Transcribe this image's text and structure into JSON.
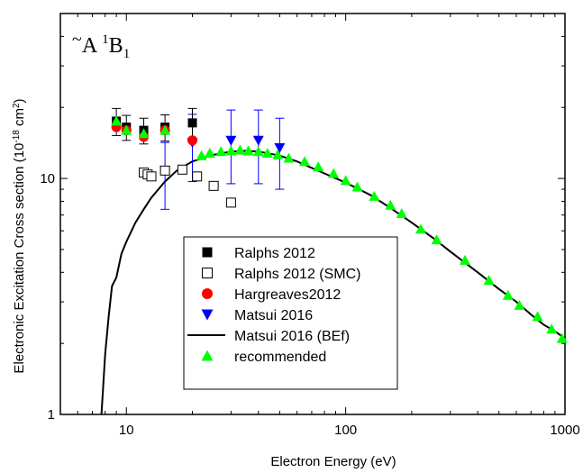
{
  "chart_data": {
    "type": "scatter",
    "xlabel": "Electron Energy (eV)",
    "ylabel": "Electronic Excitation Cross section (10",
    "ylabel_sup": "-18",
    "ylabel_unit": " cm",
    "ylabel_unit_sup": "2",
    "ylabel_end": ")",
    "annotation": {
      "tilde": "~",
      "letter": "A",
      "sup": "1",
      "main": "B",
      "sub": "1"
    },
    "xscale": "log",
    "yscale": "log",
    "xlim": [
      5,
      1000
    ],
    "ylim": [
      1,
      50
    ],
    "x_ticks": [
      {
        "value": 10,
        "label": "10"
      },
      {
        "value": 100,
        "label": "100"
      },
      {
        "value": 1000,
        "label": "1000"
      }
    ],
    "y_ticks": [
      {
        "value": 1,
        "label": "1"
      },
      {
        "value": 10,
        "label": "10"
      }
    ],
    "legend_position": "bottom-center",
    "series": [
      {
        "name": "Ralphs 2012",
        "marker": "square-filled",
        "color": "#000000",
        "x": [
          9,
          10,
          12,
          15,
          20
        ],
        "y": [
          17.5,
          16.5,
          16,
          16.5,
          17.2
        ],
        "yerr": [
          2.3,
          2.0,
          2.0,
          2.1,
          2.6
        ]
      },
      {
        "name": "Ralphs 2012 (SMC)",
        "marker": "square-open",
        "color": "#000000",
        "x": [
          12,
          12.5,
          13,
          15,
          18,
          21,
          25,
          30
        ],
        "y": [
          10.6,
          10.4,
          10.2,
          10.8,
          10.9,
          10.2,
          9.3,
          7.9
        ]
      },
      {
        "name": "Hargreaves2012",
        "marker": "circle-filled",
        "color": "#ff0000",
        "x": [
          9,
          10,
          12,
          15,
          20
        ],
        "y": [
          16.5,
          16,
          15,
          16,
          14.5
        ]
      },
      {
        "name": "Matsui 2016",
        "marker": "triangle-down-filled",
        "color": "#0000ff",
        "x": [
          15,
          20,
          30,
          40,
          50
        ],
        "y": [
          10.8,
          14.2,
          14.5,
          14.5,
          13.5
        ],
        "yerr": [
          3.4,
          4.5,
          5.0,
          5.0,
          4.5
        ]
      },
      {
        "name": "Matsui 2016 (BEf)",
        "marker": "line",
        "color": "#000000",
        "x": [
          7.7,
          8.0,
          8.3,
          8.6,
          9.0,
          9.5,
          10,
          11,
          12,
          13,
          14,
          15,
          17,
          20,
          25,
          30,
          35,
          40,
          50,
          60,
          80,
          100,
          130,
          160,
          200,
          250,
          300,
          400,
          500,
          600,
          700,
          800,
          900,
          1000
        ],
        "y": [
          1.0,
          1.8,
          2.6,
          3.5,
          3.8,
          4.8,
          5.4,
          6.5,
          7.4,
          8.3,
          9.0,
          9.7,
          10.8,
          11.8,
          12.6,
          13.0,
          13.1,
          13.0,
          12.5,
          11.8,
          10.5,
          9.6,
          8.5,
          7.5,
          6.5,
          5.6,
          4.9,
          4.0,
          3.4,
          3.0,
          2.65,
          2.4,
          2.25,
          2.1
        ]
      },
      {
        "name": "recommended",
        "marker": "triangle-up-filled",
        "color": "#00ff00",
        "x": [
          9,
          10,
          12,
          15,
          22,
          24,
          27,
          30,
          33,
          36,
          40,
          44,
          49,
          55,
          65,
          75,
          88,
          100,
          113,
          135,
          160,
          180,
          220,
          260,
          350,
          450,
          550,
          620,
          750,
          870,
          970
        ],
        "y": [
          17.5,
          16.0,
          15.5,
          16.0,
          12.5,
          12.8,
          13.0,
          13.1,
          13.2,
          13.1,
          13.0,
          12.8,
          12.6,
          12.2,
          11.8,
          11.2,
          10.5,
          9.8,
          9.2,
          8.4,
          7.7,
          7.1,
          6.1,
          5.5,
          4.5,
          3.7,
          3.2,
          2.9,
          2.6,
          2.3,
          2.1
        ]
      }
    ]
  }
}
